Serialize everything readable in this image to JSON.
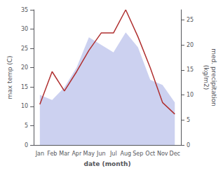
{
  "chart_data": {
    "type": "line",
    "categories": [
      "Jan",
      "Feb",
      "Mar",
      "Apr",
      "May",
      "Jun",
      "Jul",
      "Aug",
      "Sep",
      "Oct",
      "Nov",
      "Dec"
    ],
    "series": [
      {
        "type": "area",
        "axis": "y2",
        "color": "#b0b8e8",
        "values": [
          10.0,
          9.0,
          11.5,
          15.5,
          21.5,
          20.0,
          18.5,
          22.5,
          19.5,
          13.0,
          12.0,
          8.5
        ]
      },
      {
        "type": "line",
        "axis": "y",
        "color": "#b03030",
        "values": [
          10.5,
          19.0,
          14.0,
          19.0,
          24.5,
          29.0,
          29.0,
          35.0,
          28.0,
          20.0,
          11.0,
          8.0
        ]
      }
    ],
    "xlabel": "date (month)",
    "ylabel": "max temp (C)",
    "y2label": "med. precipitation\n(kg/m2)",
    "ylim": [
      0,
      35
    ],
    "yticks": [
      0,
      5,
      10,
      15,
      20,
      25,
      30,
      35
    ],
    "y2lim": [
      0,
      27
    ],
    "y2ticks": [
      0,
      5,
      10,
      15,
      20,
      25
    ],
    "grid": false
  }
}
